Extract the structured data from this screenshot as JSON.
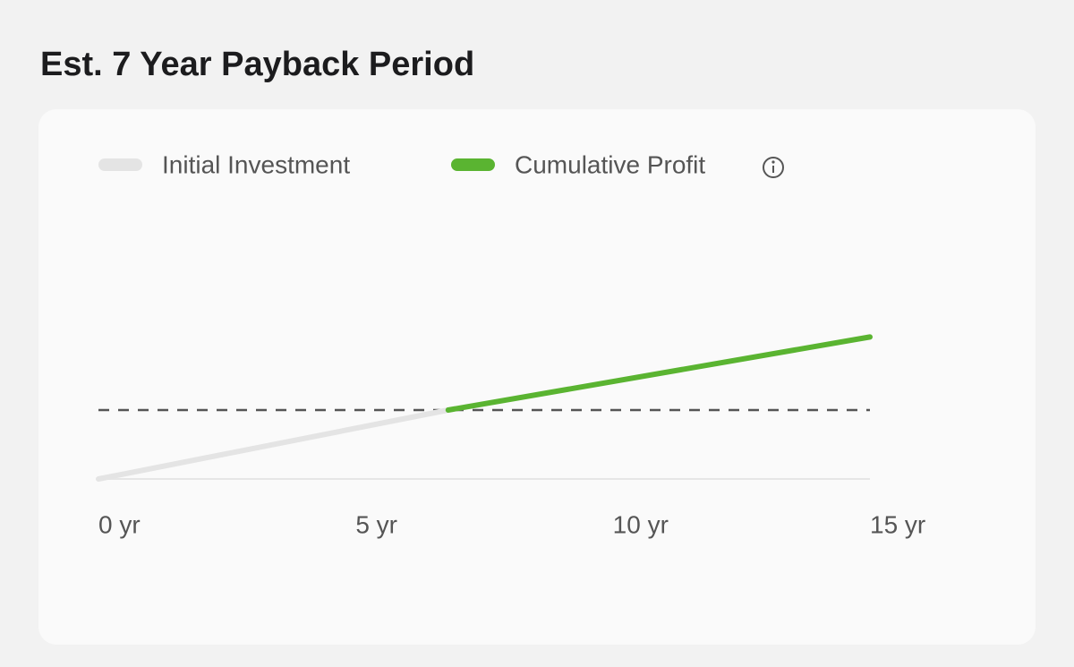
{
  "chart_data": {
    "type": "line",
    "title": "Est. 7 Year Payback Period",
    "series": [
      {
        "name": "Initial Investment",
        "color": "#e4e4e4",
        "x": [
          0,
          6.8
        ],
        "values": [
          0,
          100
        ]
      },
      {
        "name": "Cumulative Profit",
        "color": "#5ab431",
        "x": [
          6.8,
          15
        ],
        "values": [
          100,
          206
        ]
      }
    ],
    "reference_line": 100,
    "xlim": [
      0,
      15
    ],
    "xticks": [
      {
        "value": 0,
        "label": "0 yr"
      },
      {
        "value": 5,
        "label": "5 yr"
      },
      {
        "value": 10,
        "label": "10 yr"
      },
      {
        "value": 15,
        "label": "15 yr"
      }
    ],
    "ylim": [
      0,
      250
    ],
    "grid": false
  }
}
